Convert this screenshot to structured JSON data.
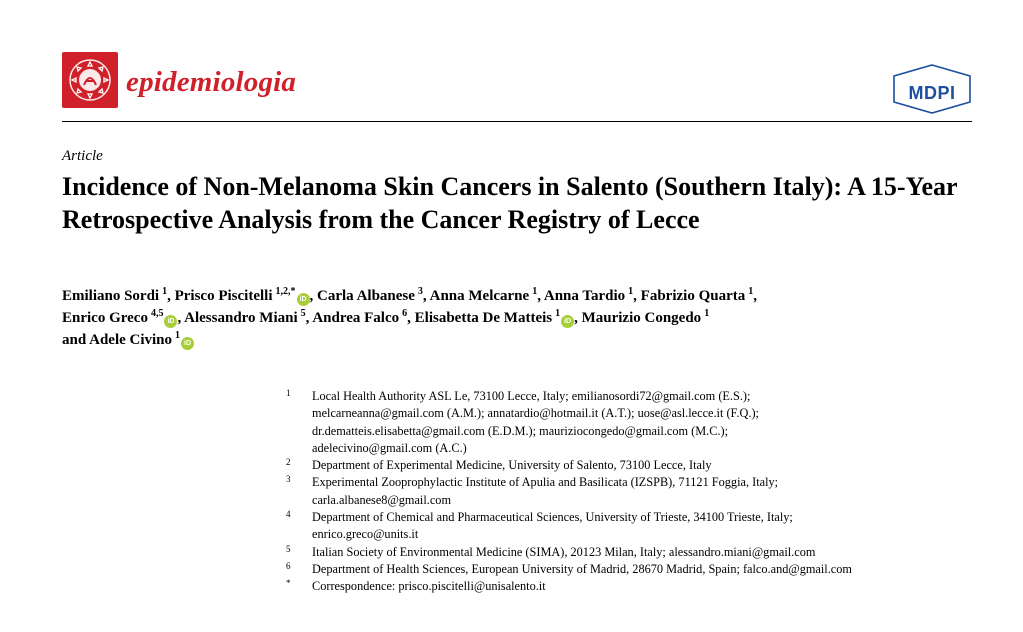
{
  "journal": {
    "name": "epidemiologia",
    "logo_icon": "epidemiologia-crest-icon",
    "brand_color": "#d0202a"
  },
  "publisher": {
    "name": "MDPI",
    "logo_icon": "mdpi-hexagon-icon",
    "brand_color": "#1e4fa0"
  },
  "article": {
    "type": "Article",
    "title": "Incidence of Non-Melanoma Skin Cancers in Salento (Southern Italy): A 15-Year Retrospective Analysis from the Cancer Registry of Lecce"
  },
  "authors": [
    {
      "name": "Emiliano Sordi",
      "sup": "1",
      "orcid": false,
      "sep": ","
    },
    {
      "name": "Prisco Piscitelli",
      "sup": "1,2,*",
      "orcid": true,
      "sep": ","
    },
    {
      "name": "Carla Albanese",
      "sup": "3",
      "orcid": false,
      "sep": ","
    },
    {
      "name": "Anna Melcarne",
      "sup": "1",
      "orcid": false,
      "sep": ","
    },
    {
      "name": "Anna Tardio",
      "sup": "1",
      "orcid": false,
      "sep": ","
    },
    {
      "name": "Fabrizio Quarta",
      "sup": "1",
      "orcid": false,
      "sep": ","
    },
    {
      "name": "Enrico Greco",
      "sup": "4,5",
      "orcid": true,
      "sep": ","
    },
    {
      "name": "Alessandro Miani",
      "sup": "5",
      "orcid": false,
      "sep": ","
    },
    {
      "name": "Andrea Falco",
      "sup": "6",
      "orcid": false,
      "sep": ","
    },
    {
      "name": "Elisabetta De Matteis",
      "sup": "1",
      "orcid": true,
      "sep": ","
    },
    {
      "name": "Maurizio Congedo",
      "sup": "1",
      "orcid": false,
      "sep": ""
    },
    {
      "name": "and Adele Civino",
      "sup": "1",
      "orcid": true,
      "sep": ""
    }
  ],
  "orcid_label": "iD",
  "affiliations": [
    {
      "num": "1",
      "lines": [
        "Local Health Authority ASL Le, 73100 Lecce, Italy; emilianosordi72@gmail.com (E.S.);",
        "melcarneanna@gmail.com (A.M.); annatardio@hotmail.it (A.T.); uose@asl.lecce.it (F.Q.);",
        "dr.dematteis.elisabetta@gmail.com (E.D.M.); mauriziocongedo@gmail.com (M.C.);",
        "adelecivino@gmail.com (A.C.)"
      ]
    },
    {
      "num": "2",
      "lines": [
        "Department of Experimental Medicine, University of Salento, 73100 Lecce, Italy"
      ]
    },
    {
      "num": "3",
      "lines": [
        "Experimental Zooprophylactic Institute of Apulia and Basilicata (IZSPB), 71121 Foggia, Italy;",
        "carla.albanese8@gmail.com"
      ]
    },
    {
      "num": "4",
      "lines": [
        "Department of Chemical and Pharmaceutical Sciences, University of Trieste, 34100 Trieste, Italy;",
        "enrico.greco@units.it"
      ]
    },
    {
      "num": "5",
      "lines": [
        "Italian Society of Environmental Medicine (SIMA), 20123 Milan, Italy; alessandro.miani@gmail.com"
      ]
    },
    {
      "num": "6",
      "lines": [
        "Department of Health Sciences, European University of Madrid, 28670 Madrid, Spain; falco.and@gmail.com"
      ]
    },
    {
      "num": "*",
      "lines": [
        "Correspondence: prisco.piscitelli@unisalento.it"
      ]
    }
  ]
}
